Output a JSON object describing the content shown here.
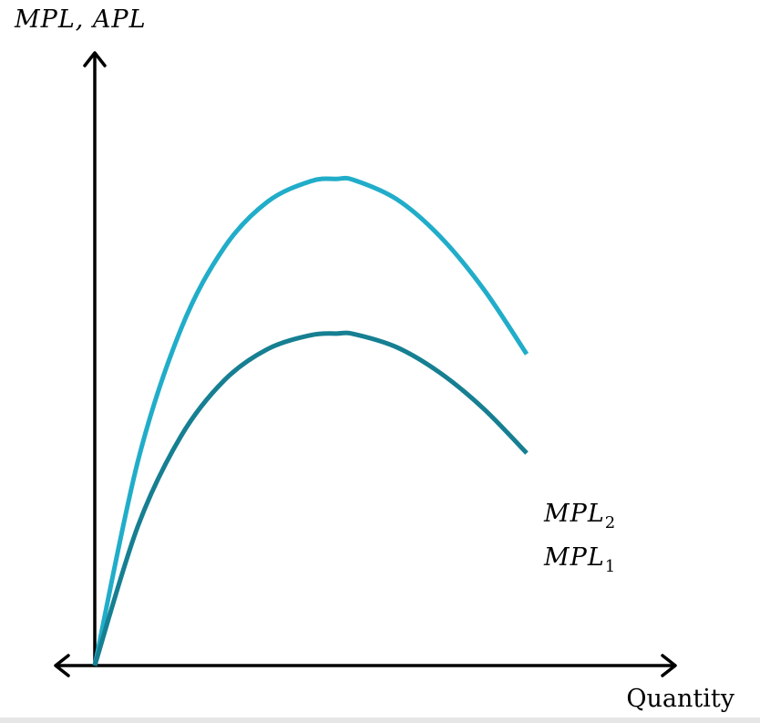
{
  "chart_data": {
    "type": "line",
    "title": "",
    "ylabel": "MPL, APL",
    "xlabel": "Quantity",
    "grid": false,
    "xlim": [
      0,
      10
    ],
    "ylim": [
      0,
      10
    ],
    "series": [
      {
        "name": "MPL2",
        "label_main": "MPL",
        "label_sub": "2",
        "color": "#21adc9",
        "x": [
          0,
          1,
          2,
          3,
          4,
          5,
          5.6,
          6,
          7,
          8,
          9,
          10
        ],
        "y": [
          0,
          3.68,
          6.06,
          7.52,
          8.34,
          8.71,
          8.75,
          8.73,
          8.38,
          7.71,
          6.77,
          5.6
        ]
      },
      {
        "name": "MPL1",
        "label_main": "MPL",
        "label_sub": "1",
        "color": "#167f92",
        "x": [
          0,
          1,
          2,
          3,
          4,
          5,
          5.6,
          6,
          7,
          8,
          9,
          10
        ],
        "y": [
          0,
          2.51,
          4.13,
          5.13,
          5.69,
          5.94,
          5.97,
          5.96,
          5.72,
          5.26,
          4.62,
          3.82
        ]
      }
    ]
  }
}
